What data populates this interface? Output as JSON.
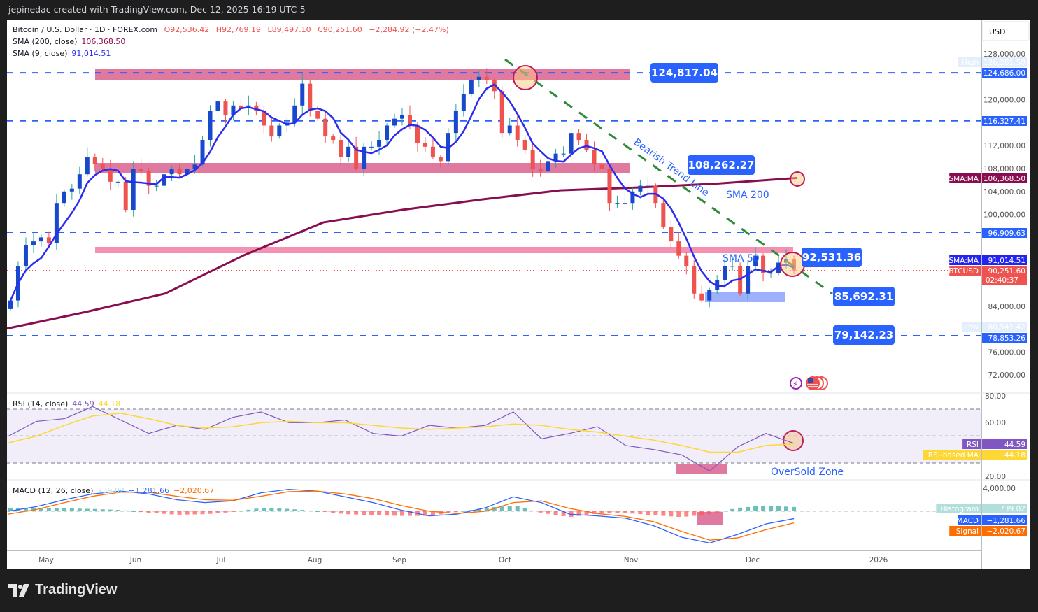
{
  "topbar": {
    "caption": "jepinedac created with TradingView.com, Dec 12, 2025 16:19 UTC-5"
  },
  "footer": {
    "brand": "TradingView"
  },
  "currency_button": "USD",
  "legend": {
    "symbol": "Bitcoin / U.S. Dollar · 1D · FOREX.com",
    "open": "O92,536.42",
    "high": "H92,769.19",
    "low": "L89,497.10",
    "close": "C90,251.60",
    "change": "−2,284.92 (−2.47%)",
    "sma200_label": "SMA (200, close)",
    "sma200_value": "106,368.50",
    "sma9_label": "SMA (9, close)",
    "sma9_value": "91,014.51",
    "rsi_label": "RSI (14, close)",
    "rsi_value": "44.59",
    "rsi_ma_value": "44.18",
    "macd_label": "MACD (12, 26, close)",
    "hist_value": "739.02",
    "macd_value": "−1,281.66",
    "signal_value": "−2,020.67"
  },
  "colors": {
    "up": "#1848cc",
    "down": "#ef5350",
    "sma9": "#2b2bf0",
    "sma200": "#880e4f",
    "rsi": "#7e57c2",
    "rsi_ma": "#fdd835",
    "macd": "#2962ff",
    "signal": "#ff6d00",
    "hist_pos": "#26a69a",
    "hist_neg": "#ff5252",
    "level": "#2962ff",
    "zone": "#d9618f",
    "trend": "#2e8b3a"
  },
  "annotations": {
    "levels": [
      "124,817.04",
      "108,262.27",
      "92,531.36",
      "85,692.31",
      "79,142.23"
    ],
    "trend_label": "Bearish Trend Line",
    "sma200_label": "SMA 200",
    "sma50_label": "SMA 50",
    "oversold_label": "OverSold Zone"
  },
  "price_axis": {
    "ticks": [
      "128,000.00",
      "120,000.00",
      "112,000.00",
      "108,000.00",
      "104,000.00",
      "100,000.00",
      "84,000.00",
      "76,000.00",
      "72,000.00"
    ],
    "tick_values": [
      128000,
      120000,
      112000,
      108000,
      104000,
      100000,
      84000,
      76000,
      72000
    ],
    "tags": [
      {
        "label": "High",
        "value": "126,281.50",
        "bg": "#e3effd",
        "fg": "#131722"
      },
      {
        "label": "",
        "value": "124,686.00",
        "bg": "#2962ff",
        "fg": "#ffffff"
      },
      {
        "label": "",
        "value": "116,327.41",
        "bg": "#2962ff",
        "fg": "#ffffff"
      },
      {
        "label": "SMA:MA",
        "value": "106,368.50",
        "bg": "#880e4f",
        "fg": "#ffffff"
      },
      {
        "label": "",
        "value": "96,909.63",
        "bg": "#2962ff",
        "fg": "#ffffff"
      },
      {
        "label": "SMA:MA",
        "value": "91,014.51",
        "bg": "#2424f0",
        "fg": "#ffffff"
      },
      {
        "label": "BTCUSD",
        "value": "90,251.60",
        "sub": "02:40:37",
        "bg": "#ef5350",
        "fg": "#ffffff"
      },
      {
        "label": "Low",
        "value": "80,541.42",
        "bg": "#e3effd",
        "fg": "#131722"
      },
      {
        "label": "",
        "value": "78,853.26",
        "bg": "#2962ff",
        "fg": "#ffffff"
      }
    ]
  },
  "rsi_axis": {
    "ticks": [
      "80.00",
      "60.00",
      "20.00"
    ],
    "tags": [
      {
        "label": "RSI",
        "value": "44.59",
        "bg": "#7e57c2",
        "fg": "#ffffff"
      },
      {
        "label": "RSI-based MA",
        "value": "44.18",
        "bg": "#fdd835",
        "fg": "#131722"
      }
    ]
  },
  "macd_axis": {
    "ticks": [
      "4,000.00"
    ],
    "tags": [
      {
        "label": "Histogram",
        "value": "739.02",
        "bg": "#b2dfdb",
        "fg": "#131722"
      },
      {
        "label": "MACD",
        "value": "−1,281.66",
        "bg": "#2962ff",
        "fg": "#ffffff"
      },
      {
        "label": "Signal",
        "value": "−2,020.67",
        "bg": "#ff6d00",
        "fg": "#ffffff"
      }
    ]
  },
  "time_axis": [
    "May",
    "Jun",
    "Jul",
    "Aug",
    "Sep",
    "Oct",
    "Nov",
    "Dec",
    "2026"
  ],
  "chart_data": [
    {
      "type": "candlestick",
      "title": "Bitcoin / U.S. Dollar · 1D · FOREX.com",
      "ylim": [
        70000,
        130000
      ],
      "level_prices": [
        124686.0,
        116327.41,
        96909.63,
        78853.26
      ],
      "closes": [
        85000,
        91000,
        94700,
        95300,
        96000,
        95000,
        102000,
        104000,
        104500,
        107000,
        110000,
        108800,
        108000,
        105700,
        105700,
        100800,
        108000,
        107500,
        105000,
        105000,
        107000,
        108000,
        107000,
        108000,
        108700,
        113000,
        118000,
        119700,
        117300,
        119000,
        118500,
        119000,
        118000,
        115500,
        113600,
        115500,
        116000,
        119000,
        122800,
        118000,
        116700,
        113600,
        113000,
        110000,
        111800,
        108000,
        111800,
        111800,
        113000,
        115500,
        116700,
        117300,
        115500,
        112400,
        111800,
        110000,
        109300,
        114200,
        118000,
        121000,
        123400,
        124000,
        123400,
        121500,
        114200,
        115500,
        113000,
        111200,
        108000,
        107500,
        109300,
        110600,
        110600,
        114200,
        113000,
        111200,
        108700,
        108000,
        102000,
        102000,
        102000,
        104000,
        105000,
        105000,
        102000,
        97800,
        95300,
        92800,
        91000,
        86200,
        85000,
        86800,
        88600,
        91000,
        91000,
        86200,
        91000,
        92800,
        89800,
        89800,
        91600,
        92200,
        90251.6
      ],
      "sma200": [
        80100,
        83000,
        86200,
        92900,
        98600,
        100800,
        102600,
        104200,
        104700,
        105400,
        106368.5
      ]
    },
    {
      "type": "line",
      "title": "RSI (14, close)",
      "ylim": [
        20,
        80
      ],
      "bands": [
        30,
        50,
        70
      ],
      "series": [
        {
          "name": "RSI",
          "values": [
            50,
            61,
            63,
            72,
            62,
            52,
            58,
            55,
            64,
            68,
            60,
            60,
            62,
            52,
            50,
            58,
            56,
            58,
            68,
            48,
            52,
            57,
            43,
            40,
            36,
            24,
            42,
            52,
            44.59
          ]
        },
        {
          "name": "RSI-based MA",
          "values": [
            45,
            50,
            58,
            65,
            67,
            63,
            58,
            56,
            57,
            60,
            61,
            60,
            60,
            58,
            56,
            55,
            56,
            57,
            59,
            58,
            55,
            53,
            50,
            47,
            43,
            38,
            38,
            43,
            44.18
          ]
        }
      ]
    },
    {
      "type": "line",
      "title": "MACD (12, 26, close)",
      "series": [
        {
          "name": "MACD",
          "values": [
            0,
            800,
            2000,
            3000,
            3500,
            3000,
            2000,
            1500,
            1800,
            3200,
            3800,
            3500,
            2500,
            1500,
            200,
            -800,
            -500,
            600,
            2500,
            1500,
            -500,
            -800,
            -1200,
            -2500,
            -4500,
            -5500,
            -4000,
            -2200,
            -1281.66
          ]
        },
        {
          "name": "Signal",
          "values": [
            -500,
            300,
            1500,
            2600,
            3300,
            3300,
            2600,
            2000,
            1900,
            2600,
            3400,
            3500,
            3000,
            2200,
            1000,
            0,
            -400,
            0,
            1500,
            1800,
            500,
            -400,
            -900,
            -1800,
            -3500,
            -5000,
            -4600,
            -3200,
            -2020.67
          ]
        }
      ]
    }
  ]
}
